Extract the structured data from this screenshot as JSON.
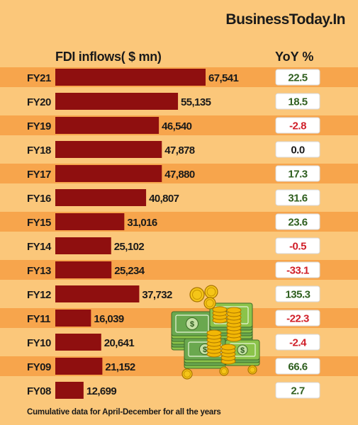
{
  "brand": "BusinessToday.In",
  "header": {
    "title": "FDI inflows( $ mn)",
    "yoy_label": "YoY %"
  },
  "footnote": "Cumulative data for April-December for all the years",
  "colors": {
    "background": "#fbc77a",
    "row_band": "#f7a54c",
    "bar": "#8f0f0f",
    "positive": "#2f5f1f",
    "negative": "#d0202a",
    "neutral": "#1a1a1a"
  },
  "chart_data": {
    "type": "bar",
    "orientation": "horizontal",
    "categories": [
      "FY21",
      "FY20",
      "FY19",
      "FY18",
      "FY17",
      "FY16",
      "FY15",
      "FY14",
      "FY13",
      "FY12",
      "FY11",
      "FY10",
      "FY09",
      "FY08"
    ],
    "series": [
      {
        "values": [
          67541,
          55135,
          46540,
          47878,
          47880,
          40807,
          31016,
          25102,
          25234,
          37732,
          16039,
          20641,
          21152,
          12699
        ],
        "labels": [
          "67,541",
          "55,135",
          "46,540",
          "47,878",
          "47,880",
          "40,807",
          "31,016",
          "25,102",
          "25,234",
          "37,732",
          "16,039",
          "20,641",
          "21,152",
          "12,699"
        ]
      },
      {
        "values": [
          22.5,
          18.5,
          -2.8,
          0.0,
          17.3,
          31.6,
          23.6,
          -0.5,
          -33.1,
          135.3,
          -22.3,
          -2.4,
          66.6,
          2.7
        ],
        "labels": [
          "22.5",
          "18.5",
          "-2.8",
          "0.0",
          "17.3",
          "31.6",
          "23.6",
          "-0.5",
          "-33.1",
          "135.3",
          "-22.3",
          "-2.4",
          "66.6",
          "2.7"
        ]
      }
    ],
    "title": "FDI inflows( $ mn)",
    "xlim": [
      0,
      70000
    ],
    "legend": "none"
  },
  "decoration": {
    "icon": "money-coins-illustration"
  }
}
